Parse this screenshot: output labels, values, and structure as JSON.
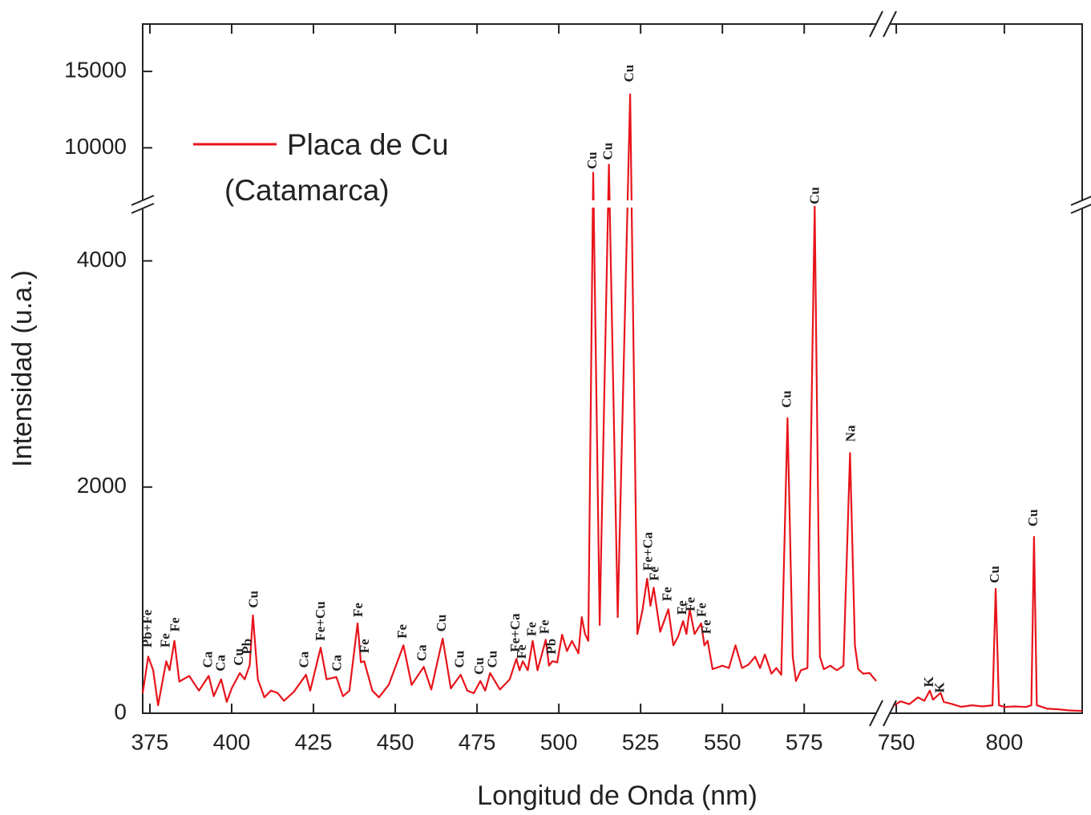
{
  "chart_data": {
    "type": "line",
    "xlabel": "Longitud de Onda (nm)",
    "ylabel": "Intensidad (u.a.)",
    "x_segments": [
      {
        "xlim": [
          372.8,
          597
        ],
        "xticks": [
          375,
          400,
          425,
          450,
          475,
          500,
          525,
          550,
          575
        ]
      },
      {
        "xlim": [
          747,
          836
        ],
        "xticks": [
          750,
          800
        ]
      }
    ],
    "y_segments": [
      {
        "ylim": [
          0,
          4500
        ],
        "yticks": [
          0,
          2000,
          4000
        ]
      },
      {
        "ylim": [
          6300,
          18100
        ],
        "yticks": [
          10000,
          15000
        ]
      }
    ],
    "series": [
      {
        "name": "Placa de Cu (Catamarca)",
        "color": "#e8141b",
        "x": [
          372.8,
          374.5,
          376,
          377.5,
          380,
          381,
          382.5,
          384,
          387,
          390,
          393,
          394.5,
          396.8,
          398.5,
          400,
          402.5,
          404,
          405.5,
          406.5,
          408,
          410,
          412,
          414,
          416,
          419,
          422.7,
          424,
          427.2,
          429,
          432,
          434,
          436,
          438.5,
          439.5,
          440.5,
          443,
          445,
          448,
          452.5,
          455,
          458.7,
          461,
          464.5,
          467,
          470,
          472,
          474,
          476,
          477.5,
          479,
          482,
          485,
          487,
          488,
          489,
          490.5,
          492,
          493.5,
          496,
          497,
          498,
          499.5,
          501,
          502.5,
          504,
          506,
          507,
          508,
          509,
          510.5,
          512.5,
          515.3,
          518,
          521.8,
          524,
          525.5,
          527,
          528,
          529,
          531,
          533.5,
          535,
          536.5,
          538,
          539,
          540,
          541.5,
          543.5,
          544.5,
          545.5,
          547,
          550,
          552,
          554,
          556,
          558,
          560,
          561.5,
          563,
          565,
          566.5,
          568,
          569.9,
          571.5,
          572.5,
          574,
          576,
          578.2,
          579.8,
          581,
          583,
          585,
          587,
          589,
          590.5,
          591.5,
          593,
          595,
          597,
          null,
          749,
          752,
          756,
          760,
          763,
          765.5,
          767,
          770.5,
          772,
          776,
          780,
          785,
          790,
          794.5,
          796,
          797.5,
          800,
          805,
          810,
          812.5,
          813.7,
          815,
          820,
          825,
          830,
          836
        ],
        "values": [
          177,
          500,
          380,
          70,
          460,
          380,
          640,
          280,
          330,
          200,
          330,
          150,
          300,
          100,
          220,
          355,
          300,
          425,
          865,
          300,
          140,
          200,
          180,
          110,
          190,
          340,
          200,
          580,
          300,
          320,
          150,
          200,
          795,
          450,
          460,
          200,
          140,
          250,
          600,
          250,
          410,
          210,
          660,
          220,
          340,
          200,
          177,
          285,
          200,
          355,
          210,
          300,
          480,
          380,
          460,
          380,
          640,
          380,
          650,
          420,
          460,
          450,
          695,
          550,
          640,
          530,
          850,
          700,
          640,
          8370,
          780,
          8900,
          850,
          13500,
          700,
          900,
          1190,
          950,
          1110,
          720,
          920,
          600,
          680,
          815,
          700,
          920,
          700,
          795,
          600,
          640,
          390,
          420,
          400,
          600,
          400,
          430,
          500,
          400,
          520,
          350,
          400,
          340,
          2610,
          500,
          285,
          380,
          400,
          4480,
          500,
          390,
          420,
          380,
          420,
          2300,
          600,
          390,
          350,
          355,
          285,
          null,
          70,
          105,
          80,
          140,
          110,
          200,
          120,
          180,
          100,
          80,
          57,
          70,
          60,
          70,
          1100,
          70,
          55,
          60,
          55,
          70,
          1560,
          70,
          40,
          35,
          25,
          20
        ]
      }
    ],
    "annotations": [
      {
        "text": "Pb+Fe",
        "x": 374.5,
        "y": 580
      },
      {
        "text": "Fe",
        "x": 380,
        "y": 580
      },
      {
        "text": "Fe",
        "x": 383,
        "y": 720
      },
      {
        "text": "Ca",
        "x": 393,
        "y": 400
      },
      {
        "text": "Ca",
        "x": 397,
        "y": 370
      },
      {
        "text": "Cu",
        "x": 402.5,
        "y": 420
      },
      {
        "text": "Pb",
        "x": 405,
        "y": 520
      },
      {
        "text": "Cu",
        "x": 407,
        "y": 930
      },
      {
        "text": "Ca",
        "x": 422.5,
        "y": 400
      },
      {
        "text": "Fe+Cu",
        "x": 427.5,
        "y": 640
      },
      {
        "text": "Ca",
        "x": 432.5,
        "y": 370
      },
      {
        "text": "Fe",
        "x": 439,
        "y": 850
      },
      {
        "text": "Fe",
        "x": 441,
        "y": 530
      },
      {
        "text": "Fe",
        "x": 452.5,
        "y": 660
      },
      {
        "text": "Ca",
        "x": 458.5,
        "y": 460
      },
      {
        "text": "Cu",
        "x": 464.5,
        "y": 720
      },
      {
        "text": "Cu",
        "x": 470,
        "y": 400
      },
      {
        "text": "Cu",
        "x": 476,
        "y": 340
      },
      {
        "text": "Cu",
        "x": 480,
        "y": 400
      },
      {
        "text": "Fe+Ca",
        "x": 487,
        "y": 540
      },
      {
        "text": "Fe",
        "x": 489,
        "y": 480
      },
      {
        "text": "Fe",
        "x": 492,
        "y": 680
      },
      {
        "text": "Fe",
        "x": 496,
        "y": 700
      },
      {
        "text": "Pb",
        "x": 498,
        "y": 520
      },
      {
        "text": "Cu",
        "x": 510.5,
        "y": 8600
      },
      {
        "text": "Cu",
        "x": 515.3,
        "y": 9200
      },
      {
        "text": "Cu",
        "x": 521.8,
        "y": 14300
      },
      {
        "text": "Fe+Ca",
        "x": 527.5,
        "y": 1260
      },
      {
        "text": "Fe",
        "x": 529.5,
        "y": 1170
      },
      {
        "text": "Fe",
        "x": 533.5,
        "y": 990
      },
      {
        "text": "Fe",
        "x": 538,
        "y": 870
      },
      {
        "text": "Fe",
        "x": 540.5,
        "y": 900
      },
      {
        "text": "Fe",
        "x": 544,
        "y": 850
      },
      {
        "text": "Fe",
        "x": 545.5,
        "y": 700
      },
      {
        "text": "Cu",
        "x": 570,
        "y": 2700
      },
      {
        "text": "Cu",
        "x": 578.5,
        "y": 4530
      },
      {
        "text": "Na",
        "x": 589.5,
        "y": 2400
      },
      {
        "text": "K",
        "x": 765.5,
        "y": 230
      },
      {
        "text": "K",
        "x": 770.5,
        "y": 180
      },
      {
        "text": "Cu",
        "x": 796,
        "y": 1150
      },
      {
        "text": "Cu",
        "x": 813.7,
        "y": 1650
      }
    ]
  }
}
